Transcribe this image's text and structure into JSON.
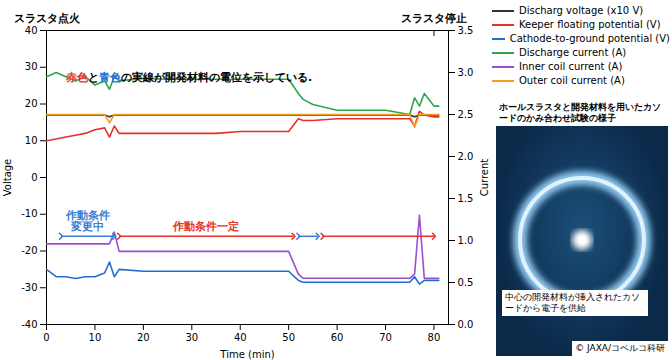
{
  "chart_data": {
    "type": "line",
    "x_label": "Time (min)",
    "y_label": "Voltage",
    "y2_label": "Current",
    "xlim": [
      0,
      83
    ],
    "xticks": [
      0,
      10,
      20,
      30,
      40,
      50,
      60,
      70,
      80
    ],
    "ylim": [
      -40,
      40
    ],
    "yticks": [
      -40,
      -30,
      -20,
      -10,
      0,
      10,
      20,
      30,
      40
    ],
    "y2lim": [
      0,
      3.5
    ],
    "y2ticks": [
      {
        "value": 0,
        "label": "0.0"
      },
      {
        "value": 0.5,
        "label": "0.5"
      },
      {
        "value": 1,
        "label": "1.0"
      },
      {
        "value": 1.5,
        "label": "1.5"
      },
      {
        "value": 2,
        "label": "2.0"
      },
      {
        "value": 2.5,
        "label": "2.5"
      },
      {
        "value": 3,
        "label": "3.0"
      },
      {
        "value": 3.5,
        "label": "3.5"
      }
    ],
    "grid": false,
    "legend": "top-right",
    "x": [
      0,
      2,
      4,
      6,
      8,
      10,
      12,
      13,
      14,
      15,
      20,
      25,
      30,
      35,
      40,
      45,
      50,
      52,
      53,
      55,
      60,
      65,
      70,
      75,
      76,
      77,
      78,
      80,
      81
    ],
    "series": [
      {
        "name": "Discharg voltage (x10 V)",
        "color": "#333333",
        "axis": "y",
        "values": [
          17,
          17,
          17,
          17,
          17,
          17,
          17,
          16.5,
          17,
          17,
          17,
          17,
          17,
          17,
          17,
          17,
          17,
          17,
          17,
          17,
          17,
          17,
          17,
          17,
          16.5,
          17,
          17,
          17,
          17
        ]
      },
      {
        "name": "Keeper floating potential (V)",
        "color": "#e8302a",
        "axis": "y",
        "values": [
          10,
          10.5,
          11,
          11.5,
          12,
          13,
          13.5,
          11,
          14,
          12,
          12,
          12,
          12,
          12,
          12.5,
          12.5,
          12.5,
          16,
          15.5,
          15.5,
          16,
          16,
          16,
          16,
          14,
          18,
          17,
          16.5,
          16.5
        ]
      },
      {
        "name": "Cathode-to-ground potential (V)",
        "color": "#1f6fd0",
        "axis": "y",
        "values": [
          -25,
          -27,
          -27,
          -27.5,
          -27,
          -27,
          -26,
          -23,
          -27,
          -25,
          -25.5,
          -25.5,
          -25.5,
          -25.5,
          -25.5,
          -25.5,
          -25.5,
          -28,
          -28.5,
          -28.5,
          -28.5,
          -28.5,
          -28.5,
          -28.5,
          -27,
          -29,
          -28,
          -28,
          -28
        ]
      },
      {
        "name": "Discharge current (A)",
        "color": "#2ca84a",
        "axis": "y2",
        "values": [
          2.95,
          3.0,
          2.95,
          2.9,
          2.95,
          2.85,
          2.9,
          2.8,
          2.95,
          2.9,
          2.93,
          2.92,
          2.92,
          2.92,
          2.92,
          2.92,
          2.92,
          2.75,
          2.68,
          2.62,
          2.55,
          2.55,
          2.55,
          2.5,
          2.7,
          2.6,
          2.75,
          2.6,
          2.6
        ]
      },
      {
        "name": "Inner coil current (A)",
        "color": "#9b4fcf",
        "axis": "y2",
        "values": [
          0.96,
          0.96,
          0.96,
          0.96,
          0.96,
          0.96,
          0.96,
          0.96,
          1.1,
          0.87,
          0.87,
          0.87,
          0.87,
          0.87,
          0.87,
          0.87,
          0.87,
          0.6,
          0.55,
          0.55,
          0.55,
          0.55,
          0.55,
          0.55,
          0.6,
          1.3,
          0.55,
          0.55,
          0.55
        ]
      },
      {
        "name": "Outer coil current (A)",
        "color": "#f0a020",
        "axis": "y2",
        "values": [
          2.5,
          2.5,
          2.5,
          2.5,
          2.5,
          2.5,
          2.5,
          2.4,
          2.5,
          2.5,
          2.5,
          2.5,
          2.5,
          2.5,
          2.5,
          2.5,
          2.5,
          2.5,
          2.5,
          2.5,
          2.5,
          2.5,
          2.5,
          2.5,
          2.35,
          2.5,
          2.5,
          2.5,
          2.5
        ]
      }
    ],
    "events": [
      {
        "x": 0,
        "label": "スラスタ点火"
      },
      {
        "x": 80,
        "label": "スラスタ停止"
      }
    ],
    "periods": [
      {
        "start": 3,
        "end": 14,
        "label": "作動条件\n変更中",
        "color": "#3a7bd5"
      },
      {
        "start": 15,
        "end": 51,
        "label": "作動条件一定",
        "color": "#e8302a"
      },
      {
        "start": 52,
        "end": 56,
        "color": "#3a7bd5"
      },
      {
        "start": 57,
        "end": 80,
        "color": "#e8302a"
      }
    ],
    "annotation": [
      {
        "text": "赤色",
        "color": "#e8302a"
      },
      {
        "text": "と",
        "color": "#000000"
      },
      {
        "text": "青色",
        "color": "#1f6fd0"
      },
      {
        "text": "の実線が開発材料の電位を示している.",
        "color": "#000000"
      }
    ],
    "photo": {
      "caption": "ホールスラスタと開発材料を用いたカソードのかみ合わせ試験の様子",
      "inner_caption": "中心の開発材料が挿入されたカソードから電子を供給",
      "credit": "© JAXA/コベルコ科研"
    }
  }
}
